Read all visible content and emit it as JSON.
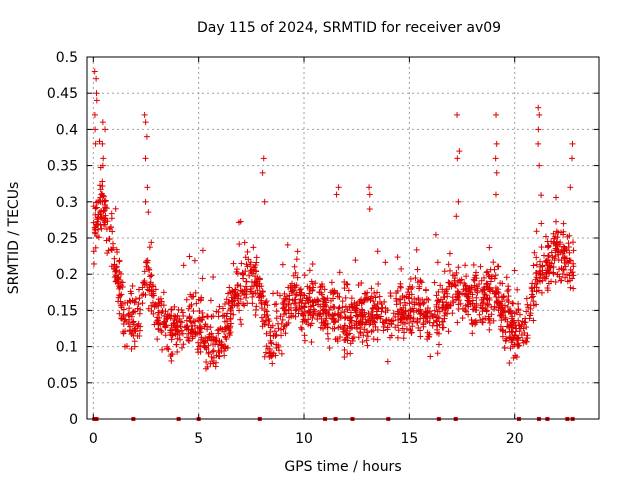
{
  "chart_data": {
    "type": "scatter",
    "title": "Day 115 of 2024, SRMTID for receiver av09",
    "xlabel": "GPS time / hours",
    "ylabel": "SRMTID / TECUs",
    "xlim": [
      -0.3,
      24
    ],
    "ylim": [
      0,
      0.5
    ],
    "x_ticks": [
      0,
      5,
      10,
      15,
      20
    ],
    "x_tick_labels": [
      "0",
      "5",
      "10",
      "15",
      "20"
    ],
    "y_ticks": [
      0,
      0.05,
      0.1,
      0.15,
      0.2,
      0.25,
      0.3,
      0.35,
      0.4,
      0.45,
      0.5
    ],
    "y_tick_labels": [
      "0",
      "0.05",
      "0.1",
      "0.15",
      "0.2",
      "0.25",
      "0.3",
      "0.35",
      "0.4",
      "0.45",
      "0.5"
    ],
    "grid": true,
    "marker": "plus",
    "color": "#e00000",
    "trend": {
      "x": [
        0,
        0.3,
        0.6,
        1.0,
        1.5,
        2.0,
        2.5,
        3.0,
        3.5,
        4.0,
        4.5,
        5.0,
        5.5,
        6.0,
        6.5,
        7.0,
        7.5,
        8.0,
        8.5,
        9.0,
        9.5,
        10.0,
        10.5,
        11.0,
        11.5,
        12.0,
        12.5,
        13.0,
        13.5,
        14.0,
        14.5,
        15.0,
        15.5,
        16.0,
        16.5,
        17.0,
        17.5,
        18.0,
        18.5,
        19.0,
        19.5,
        20.0,
        20.5,
        21.0,
        21.5,
        22.0,
        22.5,
        22.8
      ],
      "y": [
        0.25,
        0.3,
        0.28,
        0.22,
        0.14,
        0.13,
        0.2,
        0.15,
        0.13,
        0.12,
        0.14,
        0.13,
        0.11,
        0.11,
        0.15,
        0.18,
        0.2,
        0.16,
        0.1,
        0.14,
        0.18,
        0.15,
        0.16,
        0.15,
        0.14,
        0.13,
        0.14,
        0.15,
        0.15,
        0.14,
        0.15,
        0.16,
        0.15,
        0.13,
        0.15,
        0.17,
        0.18,
        0.17,
        0.16,
        0.18,
        0.14,
        0.12,
        0.13,
        0.19,
        0.21,
        0.23,
        0.22,
        0.2
      ]
    },
    "spikes": [
      {
        "x": 0.1,
        "values": [
          0.48,
          0.47,
          0.45,
          0.44,
          0.42,
          0.4,
          0.38
        ]
      },
      {
        "x": 0.5,
        "values": [
          0.41,
          0.4,
          0.38,
          0.36,
          0.35
        ]
      },
      {
        "x": 2.5,
        "values": [
          0.42,
          0.41,
          0.39,
          0.36,
          0.32,
          0.3
        ]
      },
      {
        "x": 8.1,
        "values": [
          0.36,
          0.34,
          0.3
        ]
      },
      {
        "x": 11.6,
        "values": [
          0.32,
          0.31
        ]
      },
      {
        "x": 13.1,
        "values": [
          0.32,
          0.31,
          0.29
        ]
      },
      {
        "x": 17.3,
        "values": [
          0.42,
          0.37,
          0.36,
          0.3,
          0.28
        ]
      },
      {
        "x": 19.1,
        "values": [
          0.42,
          0.38,
          0.36,
          0.34,
          0.31
        ]
      },
      {
        "x": 21.1,
        "values": [
          0.43,
          0.42,
          0.4,
          0.38,
          0.35
        ]
      },
      {
        "x": 22.7,
        "values": [
          0.38,
          0.36,
          0.32
        ]
      }
    ],
    "zero_markers_x": [
      0.05,
      0.15,
      1.9,
      4.05,
      5.0,
      7.9,
      11.0,
      11.5,
      12.3,
      14.0,
      16.4,
      17.2,
      20.2,
      21.15,
      21.55,
      22.5,
      22.75
    ]
  }
}
